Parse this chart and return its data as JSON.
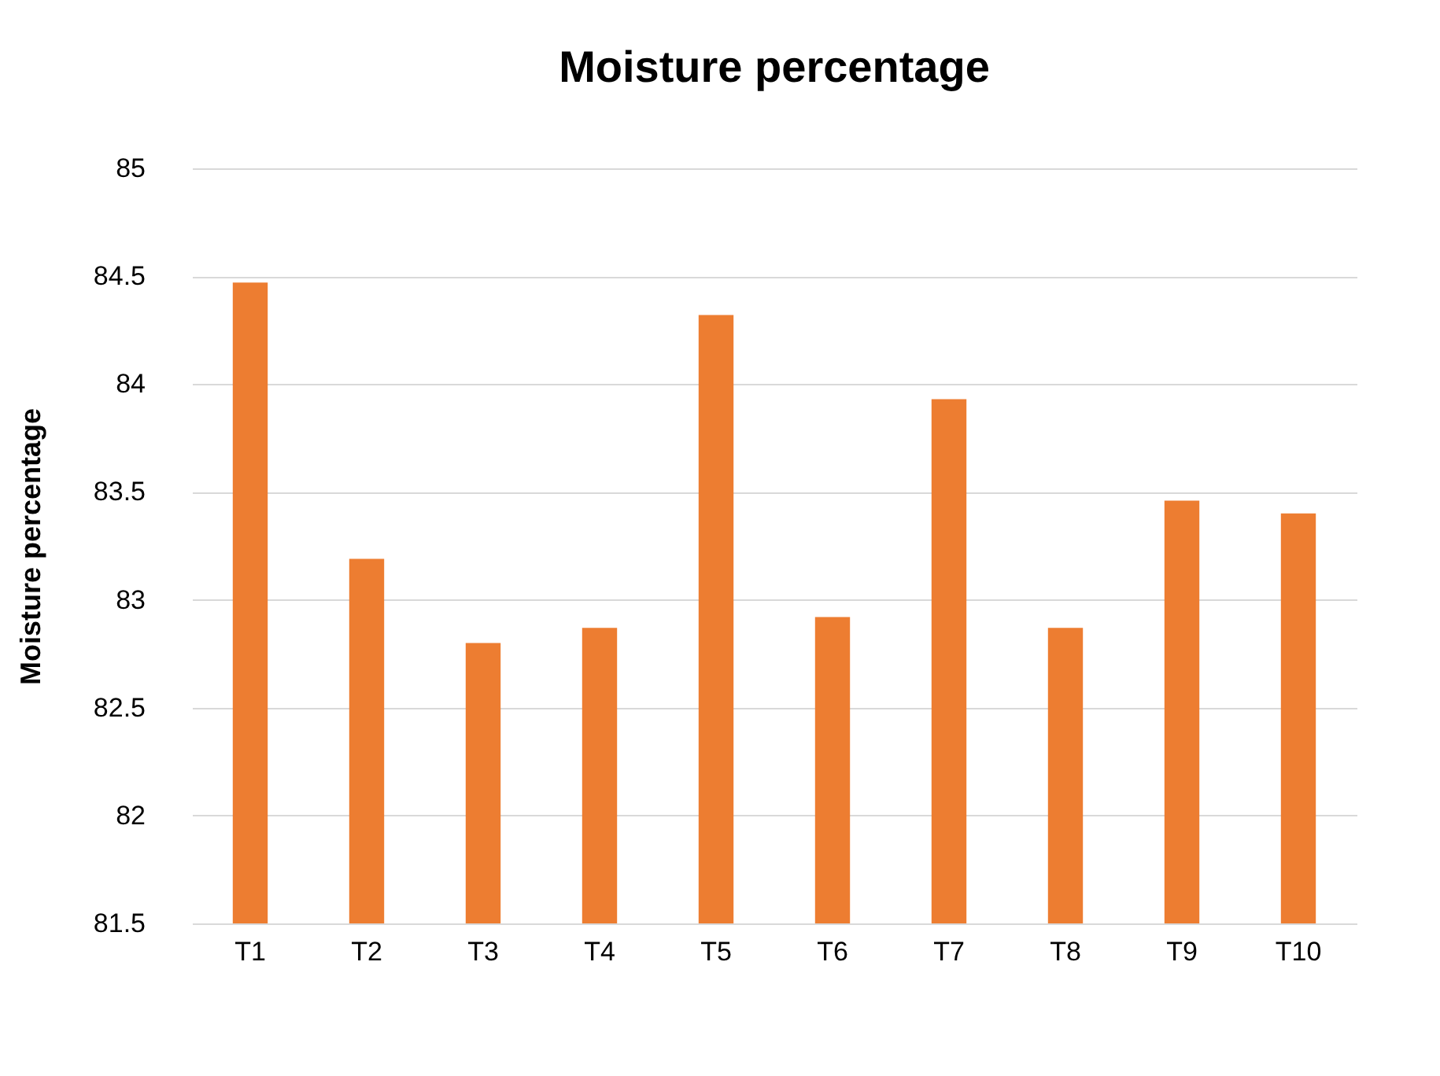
{
  "chart_data": {
    "type": "bar",
    "title": "Moisture percentage",
    "ylabel": "Moisture percentage",
    "categories": [
      "T1",
      "T2",
      "T3",
      "T4",
      "T5",
      "T6",
      "T7",
      "T8",
      "T9",
      "T10"
    ],
    "values": [
      84.47,
      83.19,
      82.8,
      82.87,
      84.32,
      82.92,
      83.93,
      82.87,
      83.46,
      83.4
    ],
    "color": "#ed7d31",
    "ylim": [
      81.5,
      85
    ],
    "yticks": [
      81.5,
      82,
      82.5,
      83,
      83.5,
      84,
      84.5,
      85
    ],
    "grid": "y"
  }
}
